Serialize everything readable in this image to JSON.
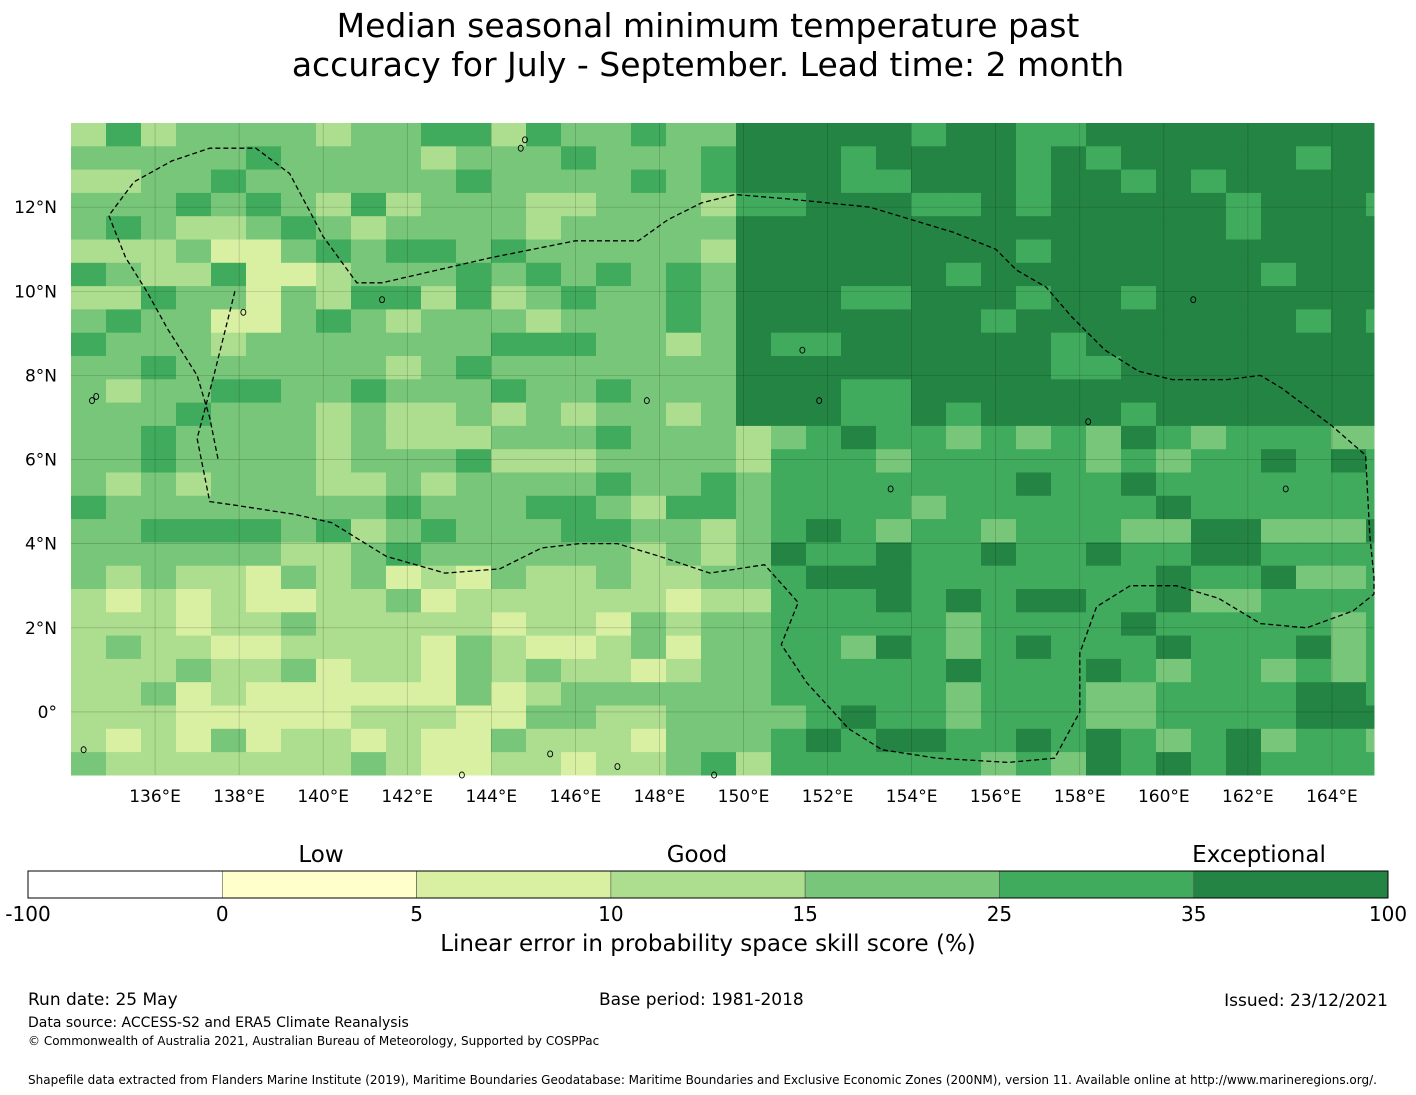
{
  "title": {
    "line1": "Median seasonal minimum temperature past",
    "line2": "accuracy for July - September. Lead time: 2 month"
  },
  "map": {
    "lon_range": [
      134.0,
      165.0
    ],
    "lat_range": [
      -1.5,
      14.0
    ],
    "lon_ticks": [
      "136°E",
      "138°E",
      "140°E",
      "142°E",
      "144°E",
      "146°E",
      "148°E",
      "150°E",
      "152°E",
      "154°E",
      "156°E",
      "158°E",
      "160°E",
      "162°E",
      "164°E"
    ],
    "lon_tick_values": [
      136,
      138,
      140,
      142,
      144,
      146,
      148,
      150,
      152,
      154,
      156,
      158,
      160,
      162,
      164
    ],
    "lat_ticks": [
      "12°N",
      "10°N",
      "8°N",
      "6°N",
      "4°N",
      "2°N",
      "0°"
    ],
    "lat_tick_values": [
      12,
      10,
      8,
      6,
      4,
      2,
      0
    ],
    "grid": true,
    "boundary_style": "dashed",
    "eez_boundary": [
      [
        137.9,
        10.0
      ],
      [
        137.4,
        8.0
      ],
      [
        137.0,
        6.5
      ],
      [
        137.3,
        5.0
      ],
      [
        138.0,
        4.9
      ],
      [
        139.3,
        4.7
      ],
      [
        140.2,
        4.5
      ],
      [
        141.5,
        3.7
      ],
      [
        142.9,
        3.3
      ],
      [
        144.2,
        3.4
      ],
      [
        145.2,
        3.9
      ],
      [
        146.1,
        4.0
      ],
      [
        147.0,
        4.0
      ],
      [
        148.0,
        3.7
      ],
      [
        149.2,
        3.3
      ],
      [
        150.5,
        3.5
      ],
      [
        151.3,
        2.6
      ],
      [
        150.9,
        1.6
      ],
      [
        151.5,
        0.7
      ],
      [
        152.5,
        -0.4
      ],
      [
        153.3,
        -0.9
      ],
      [
        154.6,
        -1.1
      ],
      [
        156.3,
        -1.2
      ],
      [
        157.4,
        -1.1
      ],
      [
        158.0,
        0.0
      ],
      [
        158.0,
        1.4
      ],
      [
        158.4,
        2.5
      ],
      [
        159.2,
        3.0
      ],
      [
        160.3,
        3.0
      ],
      [
        161.3,
        2.7
      ],
      [
        162.3,
        2.1
      ],
      [
        163.4,
        2.0
      ],
      [
        164.5,
        2.4
      ],
      [
        165.0,
        2.8
      ],
      [
        165.0,
        3.2
      ],
      [
        164.9,
        4.2
      ],
      [
        164.8,
        6.1
      ],
      [
        164.0,
        6.8
      ],
      [
        162.8,
        7.7
      ],
      [
        162.3,
        8.0
      ],
      [
        161.5,
        7.9
      ],
      [
        160.2,
        7.9
      ],
      [
        159.4,
        8.1
      ],
      [
        158.6,
        8.6
      ],
      [
        157.8,
        9.4
      ],
      [
        157.2,
        10.1
      ],
      [
        156.5,
        10.5
      ],
      [
        156.0,
        11.0
      ],
      [
        155.0,
        11.4
      ],
      [
        154.0,
        11.7
      ],
      [
        153.0,
        12.0
      ],
      [
        152.0,
        12.1
      ],
      [
        151.0,
        12.2
      ],
      [
        149.8,
        12.3
      ],
      [
        149.0,
        12.1
      ],
      [
        148.2,
        11.7
      ],
      [
        147.5,
        11.2
      ],
      [
        146.0,
        11.2
      ],
      [
        144.0,
        10.8
      ],
      [
        141.4,
        10.2
      ],
      [
        140.8,
        10.2
      ],
      [
        140.0,
        11.3
      ],
      [
        139.2,
        12.8
      ],
      [
        138.4,
        13.4
      ],
      [
        137.3,
        13.4
      ],
      [
        136.4,
        13.1
      ],
      [
        135.5,
        12.6
      ],
      [
        134.9,
        11.8
      ],
      [
        135.3,
        10.8
      ],
      [
        135.8,
        10.0
      ],
      [
        136.3,
        9.1
      ],
      [
        137.0,
        8.0
      ],
      [
        137.3,
        7.0
      ],
      [
        137.5,
        6.0
      ]
    ],
    "islands": [
      [
        144.7,
        13.4
      ],
      [
        144.8,
        13.6
      ],
      [
        134.5,
        7.4
      ],
      [
        134.6,
        7.5
      ],
      [
        138.1,
        9.5
      ],
      [
        147.7,
        7.4
      ],
      [
        151.8,
        7.4
      ],
      [
        153.5,
        5.3
      ],
      [
        158.2,
        6.9
      ],
      [
        162.9,
        5.3
      ],
      [
        134.3,
        -0.9
      ],
      [
        143.3,
        -1.5
      ],
      [
        145.4,
        -1.0
      ],
      [
        147.0,
        -1.3
      ],
      [
        149.3,
        -1.5
      ],
      [
        160.7,
        9.8
      ],
      [
        151.4,
        8.6
      ],
      [
        141.4,
        9.8
      ]
    ],
    "cell_legend": "skill score category grid; levels 0-6 map to colorbar bins"
  },
  "colorbar": {
    "categories": [
      {
        "label": "Low"
      },
      {
        "label": "Good"
      },
      {
        "label": "Exceptional"
      }
    ],
    "boundaries": [
      "-100",
      "0",
      "5",
      "10",
      "15",
      "25",
      "35",
      "100"
    ],
    "colors": [
      "#ffffff",
      "#ffffcc",
      "#d9f0a3",
      "#addd8e",
      "#78c679",
      "#41ab5d",
      "#238443"
    ],
    "label": "Linear error in probability space skill score (%)"
  },
  "footer": {
    "run_date": "Run date: 25 May",
    "base_period": "Base period: 1981-2018",
    "issued": "Issued: 23/12/2021",
    "data_source": "Data source: ACCESS-S2 and ERA5 Climate Reanalysis",
    "copyright": "© Commonwealth of Australia 2021, Australian Bureau of Meteorology, Supported by COSPPac",
    "shapefile": "Shapefile data extracted from Flanders Marine Institute (2019), Maritime Boundaries Geodatabase: Maritime Boundaries and Exclusive Economic Zones (200NM), version 11. Available online at http://www.marineregions.org/."
  }
}
